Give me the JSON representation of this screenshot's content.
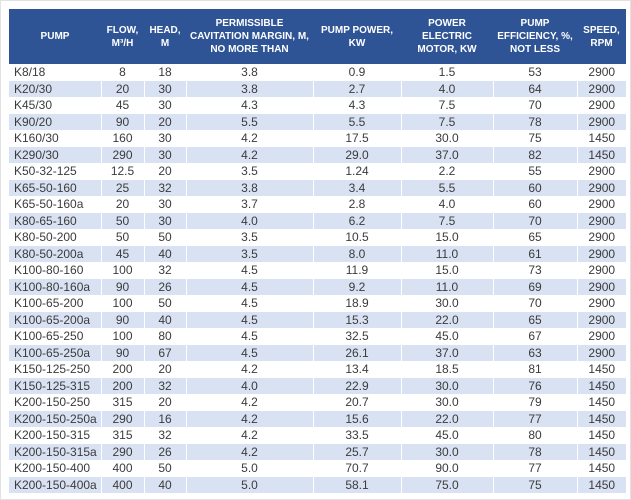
{
  "colors": {
    "header_bg": "#2F5496",
    "header_text": "#FFFFFF",
    "stripe": "#D9E2F3",
    "row_bg": "#FFFFFF",
    "cell_text": "#3B3B3B"
  },
  "table": {
    "columns": [
      {
        "key": "pump",
        "label": "PUMP"
      },
      {
        "key": "flow",
        "label": "FLOW, M³/H"
      },
      {
        "key": "head",
        "label": "HEAD, M"
      },
      {
        "key": "cavitation",
        "label": "PERMISSIBLE CAVITATION MARGIN, M, NO MORE THAN"
      },
      {
        "key": "power",
        "label": "PUMP POWER, KW"
      },
      {
        "key": "motor",
        "label": "POWER ELECTRIC MOTOR, KW"
      },
      {
        "key": "efficiency",
        "label": "PUMP EFFICIENCY, %, NOT LESS"
      },
      {
        "key": "speed",
        "label": "SPEED, RPM"
      }
    ],
    "rows": [
      [
        "K8/18",
        "8",
        "18",
        "3.8",
        "0.9",
        "1.5",
        "53",
        "2900"
      ],
      [
        "K20/30",
        "20",
        "30",
        "3.8",
        "2.7",
        "4.0",
        "64",
        "2900"
      ],
      [
        "K45/30",
        "45",
        "30",
        "4.3",
        "4.3",
        "7.5",
        "70",
        "2900"
      ],
      [
        "K90/20",
        "90",
        "20",
        "5.5",
        "5.5",
        "7.5",
        "78",
        "2900"
      ],
      [
        "K160/30",
        "160",
        "30",
        "4.2",
        "17.5",
        "30.0",
        "75",
        "1450"
      ],
      [
        "K290/30",
        "290",
        "30",
        "4.2",
        "29.0",
        "37.0",
        "82",
        "1450"
      ],
      [
        "K50-32-125",
        "12.5",
        "20",
        "3.5",
        "1.24",
        "2.2",
        "55",
        "2900"
      ],
      [
        "K65-50-160",
        "25",
        "32",
        "3.8",
        "3.4",
        "5.5",
        "60",
        "2900"
      ],
      [
        "K65-50-160a",
        "20",
        "30",
        "3.7",
        "2.8",
        "4.0",
        "60",
        "2900"
      ],
      [
        "K80-65-160",
        "50",
        "30",
        "4.0",
        "6.2",
        "7.5",
        "70",
        "2900"
      ],
      [
        "K80-50-200",
        "50",
        "50",
        "3.5",
        "10.5",
        "15.0",
        "65",
        "2900"
      ],
      [
        "K80-50-200a",
        "45",
        "40",
        "3.5",
        "8.0",
        "11.0",
        "61",
        "2900"
      ],
      [
        "K100-80-160",
        "100",
        "32",
        "4.5",
        "11.9",
        "15.0",
        "73",
        "2900"
      ],
      [
        "K100-80-160a",
        "90",
        "26",
        "4.5",
        "9.2",
        "11.0",
        "69",
        "2900"
      ],
      [
        "K100-65-200",
        "100",
        "50",
        "4.5",
        "18.9",
        "30.0",
        "70",
        "2900"
      ],
      [
        "K100-65-200a",
        "90",
        "40",
        "4.5",
        "15.3",
        "22.0",
        "65",
        "2900"
      ],
      [
        "K100-65-250",
        "100",
        "80",
        "4.5",
        "32.5",
        "45.0",
        "67",
        "2900"
      ],
      [
        "K100-65-250a",
        "90",
        "67",
        "4.5",
        "26.1",
        "37.0",
        "63",
        "2900"
      ],
      [
        "K150-125-250",
        "200",
        "20",
        "4.2",
        "13.4",
        "18.5",
        "81",
        "1450"
      ],
      [
        "K150-125-315",
        "200",
        "32",
        "4.0",
        "22.9",
        "30.0",
        "76",
        "1450"
      ],
      [
        "K200-150-250",
        "315",
        "20",
        "4.2",
        "20.7",
        "30.0",
        "79",
        "1450"
      ],
      [
        "K200-150-250a",
        "290",
        "16",
        "4.2",
        "15.6",
        "22.0",
        "77",
        "1450"
      ],
      [
        "K200-150-315",
        "315",
        "32",
        "4.2",
        "33.5",
        "45.0",
        "80",
        "1450"
      ],
      [
        "K200-150-315a",
        "290",
        "26",
        "4.2",
        "25.7",
        "30.0",
        "78",
        "1450"
      ],
      [
        "K200-150-400",
        "400",
        "50",
        "5.0",
        "70.7",
        "90.0",
        "77",
        "1450"
      ],
      [
        "K200-150-400a",
        "400",
        "40",
        "5.0",
        "58.1",
        "75.0",
        "75",
        "1450"
      ]
    ]
  }
}
